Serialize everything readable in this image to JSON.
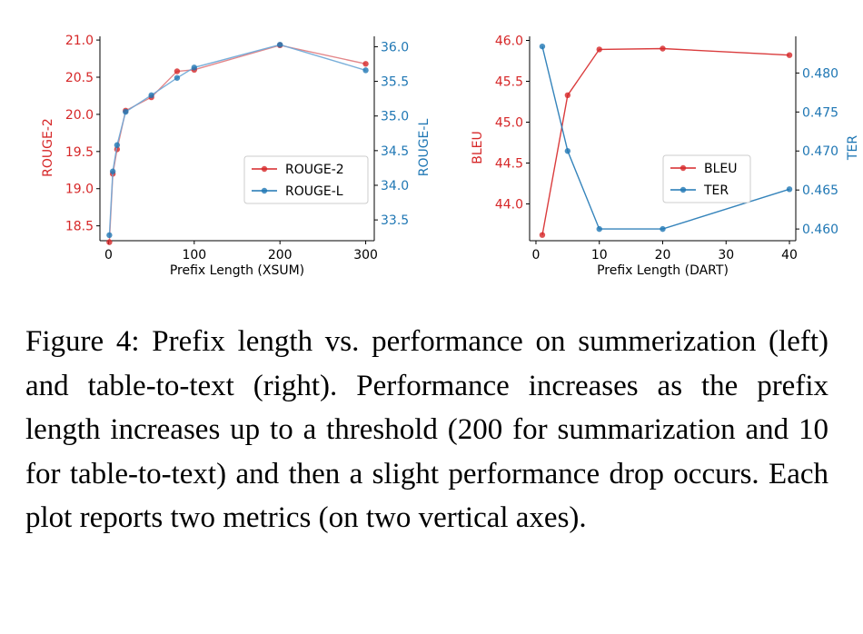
{
  "colors": {
    "red": "#d62728",
    "blue": "#1f77b4",
    "red_line": "#e07a7d",
    "blue_line": "#6aa6d6",
    "axis": "#000000"
  },
  "chart_data": [
    {
      "type": "line",
      "xlabel": "Prefix Length (XSUM)",
      "xlim": [
        -10,
        310
      ],
      "xticks": [
        0,
        100,
        200,
        300
      ],
      "ylabel_left": "ROUGE-2",
      "ylim_left": [
        18.3,
        21.05
      ],
      "yticks_left": [
        "18.5",
        "19.0",
        "19.5",
        "20.0",
        "20.5",
        "21.0"
      ],
      "ylabel_right": "ROUGE-L",
      "ylim_right": [
        33.2,
        36.15
      ],
      "yticks_right": [
        "33.5",
        "34.0",
        "34.5",
        "35.0",
        "35.5",
        "36.0"
      ],
      "legend_position": "center-right",
      "series": [
        {
          "name": "ROUGE-2",
          "axis": "left",
          "color": "red",
          "x": [
            1,
            5,
            10,
            20,
            50,
            80,
            100,
            200,
            300
          ],
          "y": [
            18.28,
            19.2,
            19.53,
            20.05,
            20.23,
            20.58,
            20.6,
            20.93,
            20.68
          ]
        },
        {
          "name": "ROUGE-L",
          "axis": "right",
          "color": "blue",
          "x": [
            1,
            5,
            10,
            20,
            50,
            80,
            100,
            200,
            300
          ],
          "y": [
            33.28,
            34.2,
            34.58,
            35.06,
            35.3,
            35.55,
            35.7,
            36.03,
            35.66
          ]
        }
      ]
    },
    {
      "type": "line",
      "xlabel": "Prefix Length (DART)",
      "xlim": [
        -1,
        41
      ],
      "xticks": [
        0,
        10,
        20,
        30,
        40
      ],
      "ylabel_left": "BLEU",
      "ylim_left": [
        43.55,
        46.05
      ],
      "yticks_left": [
        "44.0",
        "44.5",
        "45.0",
        "45.5",
        "46.0"
      ],
      "ylabel_right": "TER",
      "ylim_right": [
        0.4585,
        0.4847
      ],
      "yticks_right": [
        "0.460",
        "0.465",
        "0.470",
        "0.475",
        "0.480"
      ],
      "legend_position": "center-right",
      "series": [
        {
          "name": "BLEU",
          "axis": "left",
          "color": "red",
          "x": [
            1,
            5,
            10,
            20,
            40
          ],
          "y": [
            43.62,
            45.33,
            45.89,
            45.9,
            45.82
          ]
        },
        {
          "name": "TER",
          "axis": "right",
          "color": "blue",
          "x": [
            1,
            5,
            10,
            20,
            40
          ],
          "y": [
            0.4834,
            0.47,
            0.46,
            0.46,
            0.4651
          ]
        }
      ]
    }
  ],
  "caption": "Figure 4:  Prefix length vs. performance on summerization (left) and table-to-text (right). Performance increases as the prefix length increases up to a threshold (200 for summarization and 10 for table-to-text) and then a slight performance drop occurs.  Each plot reports two metrics (on two vertical axes)."
}
